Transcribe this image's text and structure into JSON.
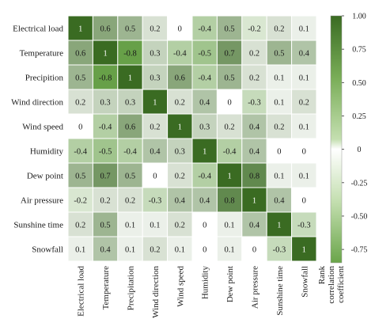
{
  "chart_data": {
    "type": "heatmap",
    "row_labels": [
      "Electrical load",
      "Temperature",
      "Precipition",
      "Wind direction",
      "Wind speed",
      "Humidity",
      "Dew point",
      "Air pressure",
      "Sunshine time",
      "Snowfall"
    ],
    "col_labels": [
      "Electrical load",
      "Temperature",
      "Precipitation",
      "Wind direction",
      "Wind speed",
      "Humidity",
      "Dew point",
      "Air pressure",
      "Sunshine time",
      "Snowfall"
    ],
    "values": [
      [
        1,
        0.6,
        0.5,
        0.2,
        0,
        -0.4,
        0.5,
        -0.2,
        0.2,
        0.1
      ],
      [
        0.6,
        1,
        -0.8,
        0.3,
        -0.4,
        -0.5,
        0.7,
        0.2,
        0.5,
        0.4
      ],
      [
        0.5,
        -0.8,
        1,
        0.3,
        0.6,
        -0.4,
        0.5,
        0.2,
        0.1,
        0.1
      ],
      [
        0.2,
        0.3,
        0.3,
        1,
        0.2,
        0.4,
        0,
        -0.3,
        0.1,
        0.2
      ],
      [
        0,
        -0.4,
        0.6,
        0.2,
        1,
        0.3,
        0.2,
        0.4,
        0.2,
        0.1
      ],
      [
        -0.4,
        -0.5,
        -0.4,
        0.4,
        0.3,
        1,
        -0.4,
        0.4,
        0,
        0
      ],
      [
        0.5,
        0.7,
        0.5,
        0,
        0.2,
        -0.4,
        1,
        0.8,
        0.1,
        0.1
      ],
      [
        -0.2,
        0.2,
        0.2,
        -0.3,
        0.4,
        0.4,
        0.8,
        1,
        0.4,
        0
      ],
      [
        0.2,
        0.5,
        0.1,
        0.1,
        0.2,
        0,
        0.1,
        0.4,
        1,
        -0.3
      ],
      [
        0.1,
        0.4,
        0.1,
        0.2,
        0.1,
        0,
        0.1,
        0,
        -0.3,
        1
      ]
    ],
    "colorbar": {
      "ticks": [
        "1.00",
        "0.75",
        "0.50",
        "0.25",
        "0",
        "-0.25",
        "-0.50",
        "-0.75"
      ],
      "tick_values": [
        1.0,
        0.75,
        0.5,
        0.25,
        0,
        -0.25,
        -0.5,
        -0.75
      ],
      "range": [
        -0.85,
        1.0
      ],
      "label_lines": [
        "Rank",
        "correlation",
        "coefficient"
      ]
    },
    "colors": {
      "high": "#3a6b22",
      "mid": "#ffffff",
      "low_scale": "#5e9a3d",
      "text_dark": "#1a1a1a",
      "text_light": "#ffffff"
    }
  }
}
